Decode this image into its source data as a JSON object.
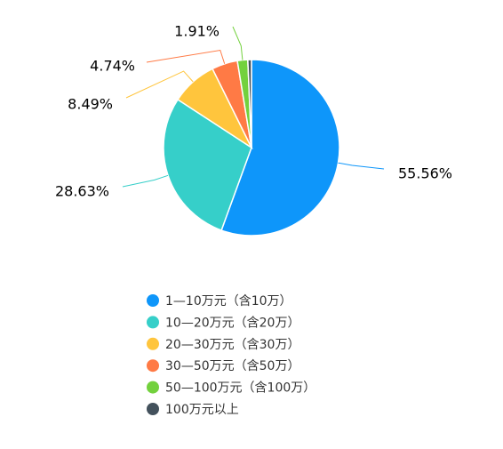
{
  "chart_data": {
    "type": "pie",
    "categories": [
      "1—10万元（含10万）",
      "10—20万元（含20万）",
      "20—30万元（含30万）",
      "30—50万元（含50万）",
      "50—100万元（含100万）",
      "100万元以上"
    ],
    "values": [
      55.56,
      28.63,
      8.49,
      4.74,
      1.91,
      0.67
    ],
    "value_labels": [
      "55.56%",
      "28.63%",
      "8.49%",
      "4.74%",
      "1.91%",
      null
    ],
    "colors": [
      "#0e96fa",
      "#36cfc9",
      "#ffc53d",
      "#ff7a45",
      "#73d13d",
      "#43515c"
    ]
  }
}
